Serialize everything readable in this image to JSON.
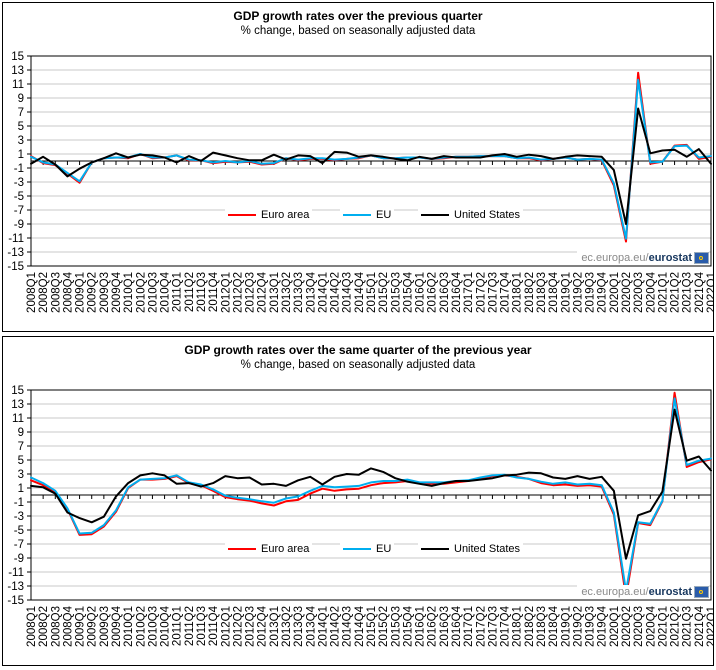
{
  "watermark": {
    "prefix": "ec.europa.eu/",
    "brand": "eurostat"
  },
  "axis": {
    "ylim": [
      -15,
      15
    ],
    "ytick_step": 2
  },
  "colors": {
    "euro_area": "#ff0000",
    "eu": "#00aeef",
    "united_states": "#000000",
    "gridline": "#c9c9c9"
  },
  "chart_data": [
    {
      "type": "line",
      "title": "GDP growth rates over the previous quarter",
      "subtitle": "% change, based on seasonally adjusted data",
      "ylim": [
        -15,
        15
      ],
      "ytick_step": 2,
      "grid": true,
      "legend_position": "inside-bottom",
      "categories": [
        "2008Q1",
        "2008Q2",
        "2008Q3",
        "2008Q4",
        "2009Q1",
        "2009Q2",
        "2009Q3",
        "2009Q4",
        "2010Q1",
        "2010Q2",
        "2010Q3",
        "2010Q4",
        "2011Q1",
        "2011Q2",
        "2011Q3",
        "2011Q4",
        "2012Q1",
        "2012Q2",
        "2012Q3",
        "2012Q4",
        "2013Q1",
        "2013Q2",
        "2013Q3",
        "2013Q4",
        "2014Q1",
        "2014Q2",
        "2014Q3",
        "2014Q4",
        "2015Q1",
        "2015Q2",
        "2015Q3",
        "2015Q4",
        "2016Q1",
        "2016Q2",
        "2016Q3",
        "2016Q4",
        "2017Q1",
        "2017Q2",
        "2017Q3",
        "2017Q4",
        "2018Q1",
        "2018Q2",
        "2018Q3",
        "2018Q4",
        "2019Q1",
        "2019Q2",
        "2019Q3",
        "2019Q4",
        "2020Q1",
        "2020Q2",
        "2020Q3",
        "2020Q4",
        "2021Q1",
        "2021Q2",
        "2021Q3",
        "2021Q4",
        "2022Q1"
      ],
      "series": [
        {
          "name": "Euro area",
          "color": "#ff0000",
          "values": [
            0.7,
            -0.3,
            -0.6,
            -1.8,
            -3.1,
            -0.2,
            0.4,
            0.5,
            0.4,
            1.0,
            0.4,
            0.5,
            0.8,
            0.1,
            0.1,
            -0.3,
            -0.1,
            -0.2,
            -0.1,
            -0.5,
            -0.4,
            0.4,
            0.1,
            0.3,
            0.3,
            0.1,
            0.3,
            0.4,
            0.8,
            0.4,
            0.4,
            0.5,
            0.5,
            0.3,
            0.4,
            0.6,
            0.6,
            0.7,
            0.7,
            0.7,
            0.4,
            0.4,
            0.1,
            0.3,
            0.5,
            0.2,
            0.3,
            0.1,
            -3.5,
            -11.5,
            12.6,
            -0.4,
            -0.1,
            2.2,
            2.3,
            0.3,
            0.6
          ]
        },
        {
          "name": "EU",
          "color": "#00aeef",
          "values": [
            0.6,
            -0.2,
            -0.5,
            -1.7,
            -2.9,
            -0.2,
            0.4,
            0.5,
            0.5,
            1.0,
            0.5,
            0.5,
            0.8,
            0.2,
            0.1,
            -0.2,
            0.0,
            -0.2,
            0.0,
            -0.4,
            -0.3,
            0.4,
            0.2,
            0.4,
            0.4,
            0.2,
            0.3,
            0.5,
            0.8,
            0.4,
            0.4,
            0.5,
            0.5,
            0.3,
            0.5,
            0.6,
            0.6,
            0.7,
            0.7,
            0.7,
            0.4,
            0.5,
            0.2,
            0.3,
            0.5,
            0.2,
            0.3,
            0.2,
            -3.2,
            -11.1,
            11.6,
            -0.2,
            -0.1,
            2.1,
            2.2,
            0.5,
            0.7
          ]
        },
        {
          "name": "United States",
          "color": "#000000",
          "values": [
            -0.4,
            0.6,
            -0.5,
            -2.2,
            -1.1,
            -0.2,
            0.4,
            1.1,
            0.5,
            0.9,
            0.8,
            0.5,
            -0.2,
            0.7,
            0.0,
            1.2,
            0.8,
            0.4,
            0.1,
            0.1,
            0.9,
            0.2,
            0.8,
            0.7,
            -0.3,
            1.3,
            1.2,
            0.6,
            0.8,
            0.6,
            0.3,
            0.1,
            0.6,
            0.3,
            0.7,
            0.5,
            0.5,
            0.5,
            0.8,
            1.0,
            0.6,
            0.9,
            0.7,
            0.3,
            0.6,
            0.8,
            0.7,
            0.6,
            -1.3,
            -9.0,
            7.5,
            1.1,
            1.5,
            1.6,
            0.6,
            1.7,
            -0.4
          ]
        }
      ]
    },
    {
      "type": "line",
      "title": "GDP growth rates over the same quarter of the previous year",
      "subtitle": "% change, based on seasonally adjusted data",
      "ylim": [
        -15,
        15
      ],
      "ytick_step": 2,
      "grid": true,
      "legend_position": "inside-bottom",
      "categories": [
        "2008Q1",
        "2008Q2",
        "2008Q3",
        "2008Q4",
        "2009Q1",
        "2009Q2",
        "2009Q3",
        "2009Q4",
        "2010Q1",
        "2010Q2",
        "2010Q3",
        "2010Q4",
        "2011Q1",
        "2011Q2",
        "2011Q3",
        "2011Q4",
        "2012Q1",
        "2012Q2",
        "2012Q3",
        "2012Q4",
        "2013Q1",
        "2013Q2",
        "2013Q3",
        "2013Q4",
        "2014Q1",
        "2014Q2",
        "2014Q3",
        "2014Q4",
        "2015Q1",
        "2015Q2",
        "2015Q3",
        "2015Q4",
        "2016Q1",
        "2016Q2",
        "2016Q3",
        "2016Q4",
        "2017Q1",
        "2017Q2",
        "2017Q3",
        "2017Q4",
        "2018Q1",
        "2018Q2",
        "2018Q3",
        "2018Q4",
        "2019Q1",
        "2019Q2",
        "2019Q3",
        "2019Q4",
        "2020Q1",
        "2020Q2",
        "2020Q3",
        "2020Q4",
        "2021Q1",
        "2021Q2",
        "2021Q3",
        "2021Q4",
        "2022Q1"
      ],
      "series": [
        {
          "name": "Euro area",
          "color": "#ff0000",
          "values": [
            2.1,
            1.4,
            0.4,
            -2.0,
            -5.7,
            -5.6,
            -4.5,
            -2.4,
            1.0,
            2.2,
            2.2,
            2.3,
            2.7,
            1.7,
            1.4,
            0.6,
            -0.3,
            -0.6,
            -0.8,
            -1.2,
            -1.5,
            -0.9,
            -0.7,
            0.2,
            0.9,
            0.6,
            0.8,
            0.9,
            1.4,
            1.7,
            1.8,
            2.0,
            1.7,
            1.6,
            1.6,
            1.8,
            2.0,
            2.4,
            2.7,
            2.8,
            2.6,
            2.3,
            1.7,
            1.4,
            1.5,
            1.3,
            1.4,
            1.2,
            -2.8,
            -14.6,
            -4.0,
            -4.3,
            -0.9,
            14.6,
            4.0,
            4.7,
            5.1
          ]
        },
        {
          "name": "EU",
          "color": "#00aeef",
          "values": [
            2.5,
            1.7,
            0.6,
            -1.9,
            -5.5,
            -5.4,
            -4.3,
            -2.2,
            1.1,
            2.2,
            2.3,
            2.4,
            2.8,
            1.8,
            1.5,
            0.8,
            -0.1,
            -0.4,
            -0.6,
            -0.9,
            -1.1,
            -0.5,
            -0.2,
            0.6,
            1.3,
            1.1,
            1.2,
            1.3,
            1.8,
            2.0,
            2.0,
            2.2,
            1.8,
            1.8,
            1.8,
            2.0,
            2.1,
            2.5,
            2.8,
            2.9,
            2.5,
            2.3,
            1.9,
            1.6,
            1.8,
            1.5,
            1.6,
            1.4,
            -2.5,
            -13.7,
            -3.9,
            -4.1,
            -0.8,
            13.8,
            4.3,
            4.9,
            5.2
          ]
        },
        {
          "name": "United States",
          "color": "#000000",
          "values": [
            1.3,
            1.1,
            0.2,
            -2.5,
            -3.3,
            -3.9,
            -3.1,
            -0.2,
            1.7,
            2.8,
            3.1,
            2.8,
            1.6,
            1.7,
            1.2,
            1.7,
            2.7,
            2.4,
            2.5,
            1.5,
            1.6,
            1.3,
            2.1,
            2.6,
            1.5,
            2.6,
            3.0,
            2.9,
            3.8,
            3.3,
            2.4,
            1.9,
            1.6,
            1.3,
            1.7,
            2.0,
            2.0,
            2.2,
            2.4,
            2.8,
            2.9,
            3.2,
            3.1,
            2.5,
            2.3,
            2.7,
            2.3,
            2.6,
            0.6,
            -9.1,
            -2.9,
            -2.3,
            0.5,
            12.2,
            4.9,
            5.5,
            3.5
          ]
        }
      ]
    }
  ]
}
